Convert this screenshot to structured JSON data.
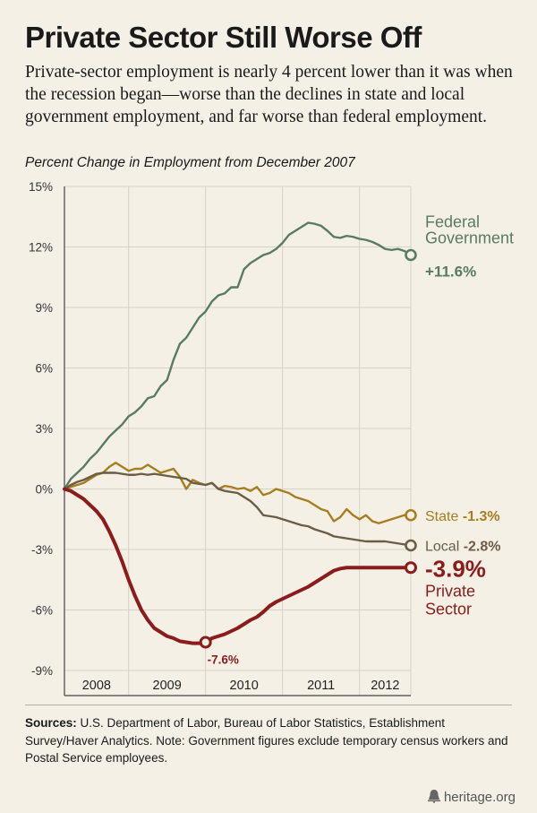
{
  "header": {
    "title": "Private Sector Still Worse Off",
    "subtitle": "Private-sector employment is nearly 4 percent lower than it was when the recession began—worse than the declines in state and local government employment, and far worse than federal employment."
  },
  "chart_data": {
    "type": "line",
    "title": "Percent Change in Employment from December 2007",
    "xlabel": "",
    "ylabel": "",
    "y_ticks": [
      "15%",
      "12%",
      "9%",
      "6%",
      "3%",
      "0%",
      "-3%",
      "-6%",
      "-9%"
    ],
    "ylim": [
      -9,
      15
    ],
    "x_range": [
      0,
      54
    ],
    "x_tick_labels": [
      "2008",
      "2009",
      "2010",
      "2011",
      "2012"
    ],
    "grid": true,
    "series": [
      {
        "name": "Federal Government",
        "key": "federal",
        "color": "#587b66",
        "end_value_label": "+11.6%",
        "label_lines": [
          "Federal",
          "Government"
        ],
        "values": [
          0,
          0.5,
          0.8,
          1.1,
          1.5,
          1.8,
          2.2,
          2.6,
          2.9,
          3.2,
          3.6,
          3.8,
          4.1,
          4.5,
          4.6,
          5.1,
          5.4,
          6.4,
          7.2,
          7.5,
          8.0,
          8.5,
          8.8,
          9.3,
          9.6,
          9.7,
          10.0,
          10.0,
          10.9,
          11.2,
          11.4,
          11.6,
          11.7,
          11.9,
          12.2,
          12.6,
          12.8,
          13.0,
          13.2,
          13.15,
          13.05,
          12.8,
          12.5,
          12.45,
          12.55,
          12.5,
          12.4,
          12.35,
          12.25,
          12.1,
          11.9,
          11.85,
          11.9,
          11.8,
          11.6
        ]
      },
      {
        "name": "State",
        "key": "state",
        "color": "#a67e1f",
        "end_value_label": "-1.3%",
        "values": [
          0,
          0.1,
          0.2,
          0.3,
          0.5,
          0.7,
          0.8,
          1.1,
          1.3,
          1.1,
          0.9,
          1.0,
          1.0,
          1.2,
          1.0,
          0.8,
          0.9,
          1.0,
          0.6,
          0.0,
          0.45,
          0.3,
          0.2,
          0.3,
          0.0,
          0.15,
          0.1,
          0.0,
          0.05,
          -0.1,
          0.1,
          -0.3,
          -0.2,
          0.0,
          -0.1,
          -0.2,
          -0.4,
          -0.5,
          -0.6,
          -0.8,
          -1.0,
          -1.1,
          -1.6,
          -1.4,
          -1.0,
          -1.3,
          -1.5,
          -1.3,
          -1.6,
          -1.7,
          -1.6,
          -1.5,
          -1.4,
          -1.3,
          -1.3
        ]
      },
      {
        "name": "Local",
        "key": "local",
        "color": "#6a5d44",
        "end_value_label": "-2.8%",
        "values": [
          0,
          0.2,
          0.35,
          0.45,
          0.6,
          0.75,
          0.8,
          0.8,
          0.8,
          0.75,
          0.7,
          0.7,
          0.75,
          0.7,
          0.75,
          0.7,
          0.65,
          0.6,
          0.55,
          0.5,
          0.3,
          0.25,
          0.2,
          0.3,
          0.0,
          -0.1,
          -0.15,
          -0.2,
          -0.4,
          -0.6,
          -0.9,
          -1.3,
          -1.35,
          -1.4,
          -1.5,
          -1.6,
          -1.7,
          -1.8,
          -1.85,
          -2.0,
          -2.1,
          -2.2,
          -2.35,
          -2.4,
          -2.45,
          -2.5,
          -2.55,
          -2.6,
          -2.6,
          -2.6,
          -2.6,
          -2.65,
          -2.7,
          -2.75,
          -2.8
        ]
      },
      {
        "name": "Private Sector",
        "key": "private",
        "color": "#8a1c1c",
        "end_value_label": "-3.9%",
        "label_lines": [
          "Private",
          "Sector"
        ],
        "trough_label": "-7.6%",
        "trough_index": 22,
        "values": [
          0,
          -0.1,
          -0.3,
          -0.5,
          -0.8,
          -1.1,
          -1.5,
          -2.1,
          -2.8,
          -3.6,
          -4.5,
          -5.3,
          -6.0,
          -6.5,
          -6.9,
          -7.1,
          -7.3,
          -7.4,
          -7.55,
          -7.6,
          -7.65,
          -7.65,
          -7.6,
          -7.4,
          -7.3,
          -7.2,
          -7.05,
          -6.9,
          -6.7,
          -6.5,
          -6.35,
          -6.1,
          -5.8,
          -5.6,
          -5.45,
          -5.3,
          -5.15,
          -5.0,
          -4.85,
          -4.65,
          -4.45,
          -4.25,
          -4.05,
          -3.95,
          -3.9,
          -3.9,
          -3.9,
          -3.9,
          -3.9,
          -3.9,
          -3.9,
          -3.9,
          -3.9,
          -3.9,
          -3.9
        ]
      }
    ]
  },
  "footer": {
    "sources_label": "Sources:",
    "sources_text": " U.S. Department of Labor, Bureau of Labor Statistics, Establishment Survey/Haver Analytics. Note: Government figures exclude temporary census workers and Postal Service employees.",
    "logo_text": "heritage.org"
  }
}
